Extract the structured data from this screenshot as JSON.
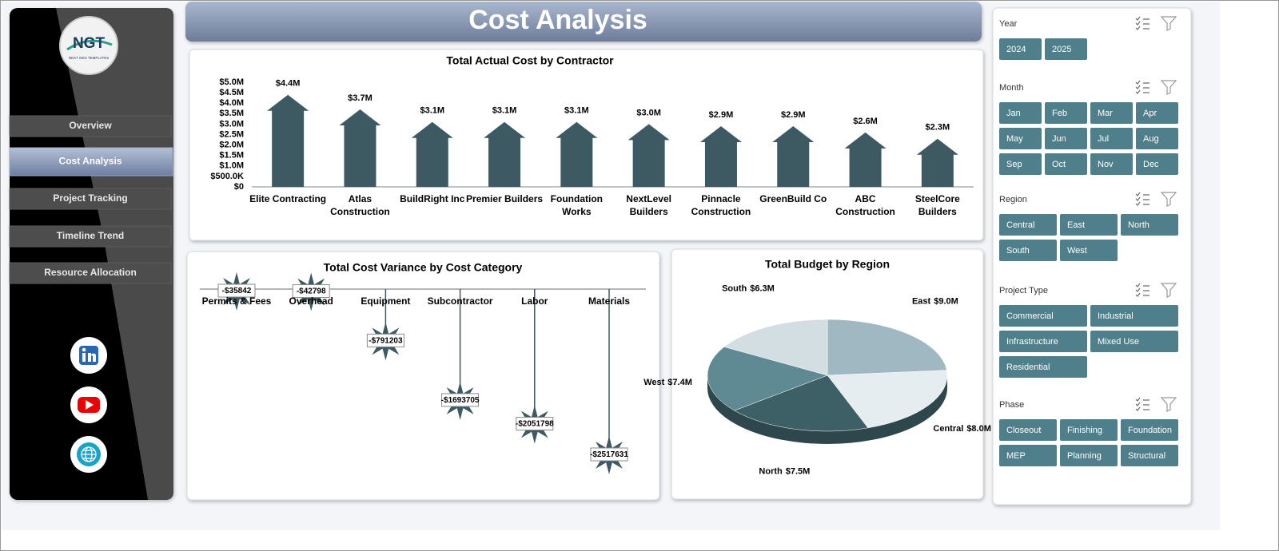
{
  "sidebar": {
    "logo": "NGT",
    "logo_sub": "NEXT GEN TEMPLATES",
    "nav": [
      "Overview",
      "Cost Analysis",
      "Project Tracking",
      "Timeline Trend",
      "Resource Allocation"
    ]
  },
  "header": {
    "title": "Cost Analysis"
  },
  "chart_data": [
    {
      "type": "arrow-bar",
      "title": "Total Actual Cost by Contractor",
      "categories": [
        "Elite Contracting",
        "Atlas\nConstruction",
        "BuildRight Inc",
        "Premier Builders",
        "Foundation\nWorks",
        "NextLevel\nBuilders",
        "Pinnacle\nConstruction",
        "GreenBuild Co",
        "ABC\nConstruction",
        "SteelCore\nBuilders"
      ],
      "values": [
        4400000,
        3700000,
        3100000,
        3100000,
        3100000,
        3000000,
        2900000,
        2900000,
        2600000,
        2300000
      ],
      "value_labels": [
        "$4.4M",
        "$3.7M",
        "$3.1M",
        "$3.1M",
        "$3.1M",
        "$3.0M",
        "$2.9M",
        "$2.9M",
        "$2.6M",
        "$2.3M"
      ],
      "color": "#3d5a63",
      "ylim": [
        0,
        5000000
      ],
      "yticks": [
        {
          "value": 0,
          "label": "$0"
        },
        {
          "value": 500000,
          "label": "$500.0K"
        },
        {
          "value": 1000000,
          "label": "$1.0M"
        },
        {
          "value": 1500000,
          "label": "$1.5M"
        },
        {
          "value": 2000000,
          "label": "$2.0M"
        },
        {
          "value": 2500000,
          "label": "$2.5M"
        },
        {
          "value": 3000000,
          "label": "$3.0M"
        },
        {
          "value": 3500000,
          "label": "$3.5M"
        },
        {
          "value": 4000000,
          "label": "$4.0M"
        },
        {
          "value": 4500000,
          "label": "$4.5M"
        },
        {
          "value": 5000000,
          "label": "$5.0M"
        }
      ]
    },
    {
      "type": "lollipop",
      "title": "Total Cost Variance by Cost Category",
      "categories": [
        "Permits & Fees",
        "Overhead",
        "Equipment",
        "Subcontractor",
        "Labor",
        "Materials"
      ],
      "values": [
        -35842,
        -42798,
        -791203,
        -1693705,
        -2051798,
        -2517631
      ],
      "value_labels": [
        "-$35842",
        "-$42798",
        "-$791203",
        "-$1693705",
        "-$2051798",
        "-$2517631"
      ],
      "color": "#3d5a63"
    },
    {
      "type": "pie",
      "title": "Total Budget by Region",
      "categories": [
        "East",
        "Central",
        "North",
        "West",
        "South"
      ],
      "values": [
        9000000,
        8000000,
        7500000,
        7400000,
        6300000
      ],
      "value_labels": [
        "$9.0M",
        "$8.0M",
        "$7.5M",
        "$7.4M",
        "$6.3M"
      ],
      "colors": [
        "#9fb8c2",
        "#e6edf0",
        "#3d5f66",
        "#5f8a94",
        "#d3dee3"
      ]
    }
  ],
  "slicers": [
    {
      "title": "Year",
      "items": [
        "2024",
        "2025"
      ]
    },
    {
      "title": "Month",
      "items": [
        "Jan",
        "Feb",
        "Mar",
        "Apr",
        "May",
        "Jun",
        "Jul",
        "Aug",
        "Sep",
        "Oct",
        "Nov",
        "Dec"
      ]
    },
    {
      "title": "Region",
      "items": [
        "Central",
        "East",
        "North",
        "South",
        "West"
      ]
    },
    {
      "title": "Project Type",
      "items": [
        "Commercial",
        "Industrial",
        "Infrastructure",
        "Mixed Use",
        "Residential"
      ]
    },
    {
      "title": "Phase",
      "items": [
        "Closeout",
        "Finishing",
        "Foundation",
        "MEP",
        "Planning",
        "Structural"
      ]
    }
  ]
}
